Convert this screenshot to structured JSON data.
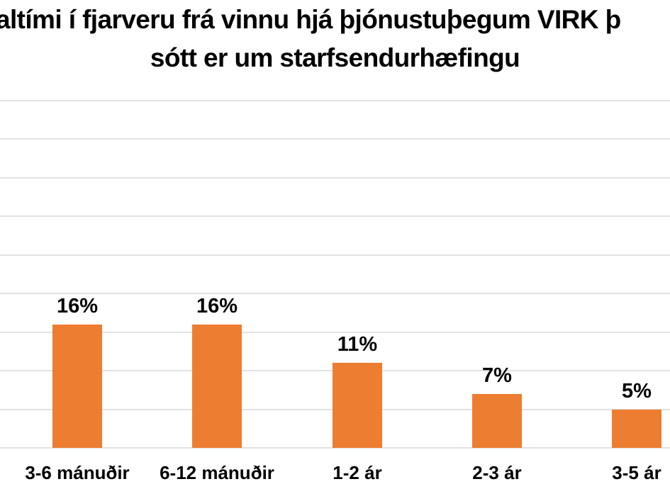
{
  "title": {
    "line1": "altími í fjarveru frá vinnu hjá þjónustuþegum VIRK þ",
    "line2": "sótt er um starfsendurhæfingu"
  },
  "chart_data": {
    "type": "bar",
    "title": "altími í fjarveru frá vinnu hjá þjónustuþegum VIRK þ / sótt er um starfsendurhæfingu",
    "categories": [
      "3-6 mánuðir",
      "6-12 mánuðir",
      "1-2 ár",
      "2-3 ár",
      "3-5 ár"
    ],
    "values": [
      16,
      16,
      11,
      7,
      5
    ],
    "data_labels": [
      "16%",
      "16%",
      "11%",
      "7%",
      "5%"
    ],
    "xlabel": "",
    "ylabel": "",
    "ylim": [
      0,
      45
    ],
    "yticks_pct": [
      0,
      5,
      10,
      15,
      20,
      25,
      30,
      35,
      40,
      45
    ],
    "ytick_labels_visible": false,
    "grid": "horizontal",
    "legend": "none",
    "colors": {
      "bar": "#ED7D31",
      "gridline": "#E2E2E2",
      "text": "#000000",
      "background": "#FFFFFF"
    }
  }
}
